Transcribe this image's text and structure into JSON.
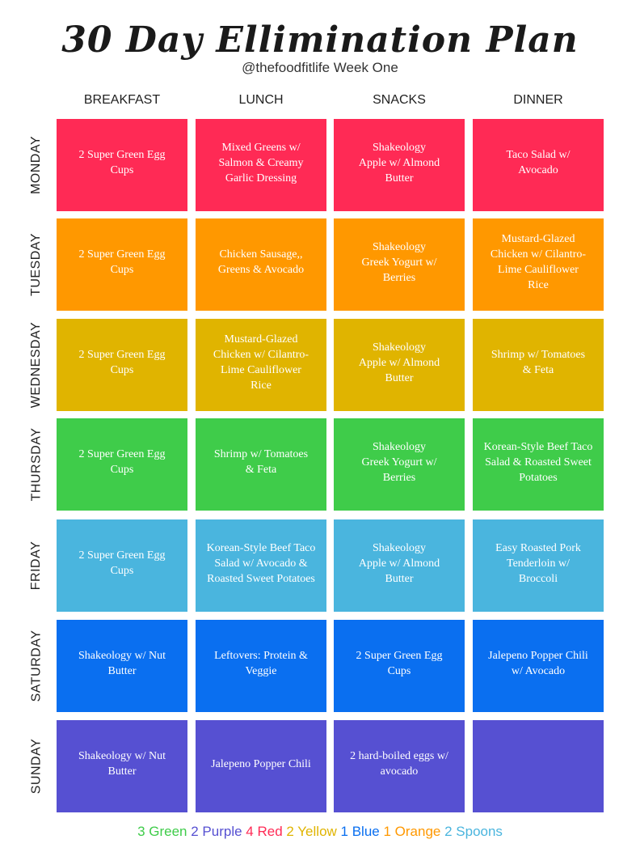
{
  "header": {
    "title": "30 Day Ellimination Plan",
    "subtitle": "@thefoodfitlife Week One"
  },
  "columns": [
    "BREAKFAST",
    "LUNCH",
    "SNACKS",
    "DINNER"
  ],
  "days": [
    {
      "name": "MONDAY",
      "color": "#ff2a55",
      "meals": [
        [
          "2 Super Green Egg",
          "Cups"
        ],
        [
          "Mixed Greens w/",
          "Salmon & Creamy",
          "Garlic Dressing"
        ],
        [
          "Shakeology",
          "Apple w/ Almond",
          "Butter"
        ],
        [
          "Taco Salad w/",
          "Avocado"
        ]
      ]
    },
    {
      "name": "TUESDAY",
      "color": "#ff9800",
      "meals": [
        [
          "2 Super Green Egg",
          "Cups"
        ],
        [
          "Chicken Sausage,,",
          "Greens & Avocado"
        ],
        [
          "Shakeology",
          "Greek Yogurt w/",
          "Berries"
        ],
        [
          "Mustard-Glazed",
          "Chicken w/ Cilantro-",
          "Lime Cauliflower",
          "Rice"
        ]
      ]
    },
    {
      "name": "WEDNESDAY",
      "color": "#e0b400",
      "meals": [
        [
          "2 Super Green Egg",
          "Cups"
        ],
        [
          "Mustard-Glazed",
          "Chicken w/ Cilantro-",
          "Lime Cauliflower",
          "Rice"
        ],
        [
          "Shakeology",
          "Apple w/ Almond",
          "Butter"
        ],
        [
          "Shrimp w/ Tomatoes",
          "& Feta"
        ]
      ]
    },
    {
      "name": "THURSDAY",
      "color": "#3fcc4a",
      "meals": [
        [
          "2 Super Green Egg",
          "Cups"
        ],
        [
          "Shrimp w/ Tomatoes",
          "& Feta"
        ],
        [
          "Shakeology",
          "Greek Yogurt w/",
          "Berries"
        ],
        [
          "Korean-Style Beef Taco",
          "Salad & Roasted Sweet",
          "Potatoes"
        ]
      ]
    },
    {
      "name": "FRIDAY",
      "color": "#4ab5de",
      "meals": [
        [
          "2 Super Green Egg",
          "Cups"
        ],
        [
          "Korean-Style Beef Taco",
          "Salad w/ Avocado &",
          "Roasted Sweet Potatoes"
        ],
        [
          "Shakeology",
          "Apple w/ Almond",
          "Butter"
        ],
        [
          "Easy Roasted Pork",
          "Tenderloin w/",
          "Broccoli"
        ]
      ]
    },
    {
      "name": "SATURDAY",
      "color": "#0a6ff0",
      "meals": [
        [
          "Shakeology w/ Nut",
          "Butter"
        ],
        [
          "Leftovers: Protein &",
          "Veggie"
        ],
        [
          "2 Super Green Egg",
          "Cups"
        ],
        [
          "Jalepeno Popper Chili",
          "w/ Avocado"
        ]
      ]
    },
    {
      "name": "SUNDAY",
      "color": "#5650d2",
      "meals": [
        [
          "Shakeology w/ Nut",
          "Butter"
        ],
        [
          "Jalepeno Popper Chili"
        ],
        [
          "2 hard-boiled eggs w/",
          "avocado"
        ],
        []
      ]
    }
  ],
  "legend": [
    {
      "text": "3 Green",
      "color": "#3fcc4a"
    },
    {
      "text": "2 Purple",
      "color": "#5650d2"
    },
    {
      "text": "4 Red",
      "color": "#ff2a55"
    },
    {
      "text": "2 Yellow",
      "color": "#e0b400"
    },
    {
      "text": "1 Blue",
      "color": "#0a6ff0"
    },
    {
      "text": "1 Orange",
      "color": "#ff9800"
    },
    {
      "text": "2 Spoons",
      "color": "#4ab5de"
    }
  ]
}
